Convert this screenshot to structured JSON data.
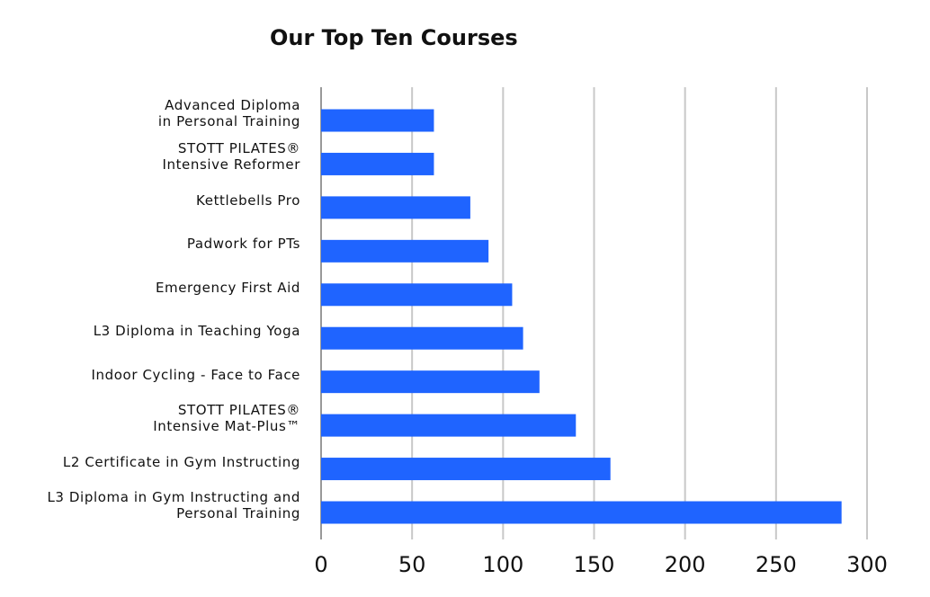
{
  "chart_data": {
    "type": "bar",
    "orientation": "horizontal",
    "title": "Our Top Ten Courses",
    "categories": [
      "Advanced Diploma\nin Personal Training",
      "STOTT PILATES®\nIntensive Reformer",
      "Kettlebells Pro",
      "Padwork for PTs",
      "Emergency First Aid",
      "L3 Diploma in Teaching Yoga",
      "Indoor Cycling - Face to Face",
      "STOTT PILATES®\nIntensive Mat-Plus™",
      "L2 Certificate in Gym Instructing",
      "L3 Diploma in Gym Instructing and\nPersonal Training"
    ],
    "values": [
      62,
      62,
      82,
      92,
      105,
      111,
      120,
      140,
      159,
      286
    ],
    "color": "#1f64ff",
    "xlim": [
      0,
      300
    ],
    "xticks": [
      0,
      50,
      100,
      150,
      200,
      250,
      300
    ],
    "grid": true
  }
}
